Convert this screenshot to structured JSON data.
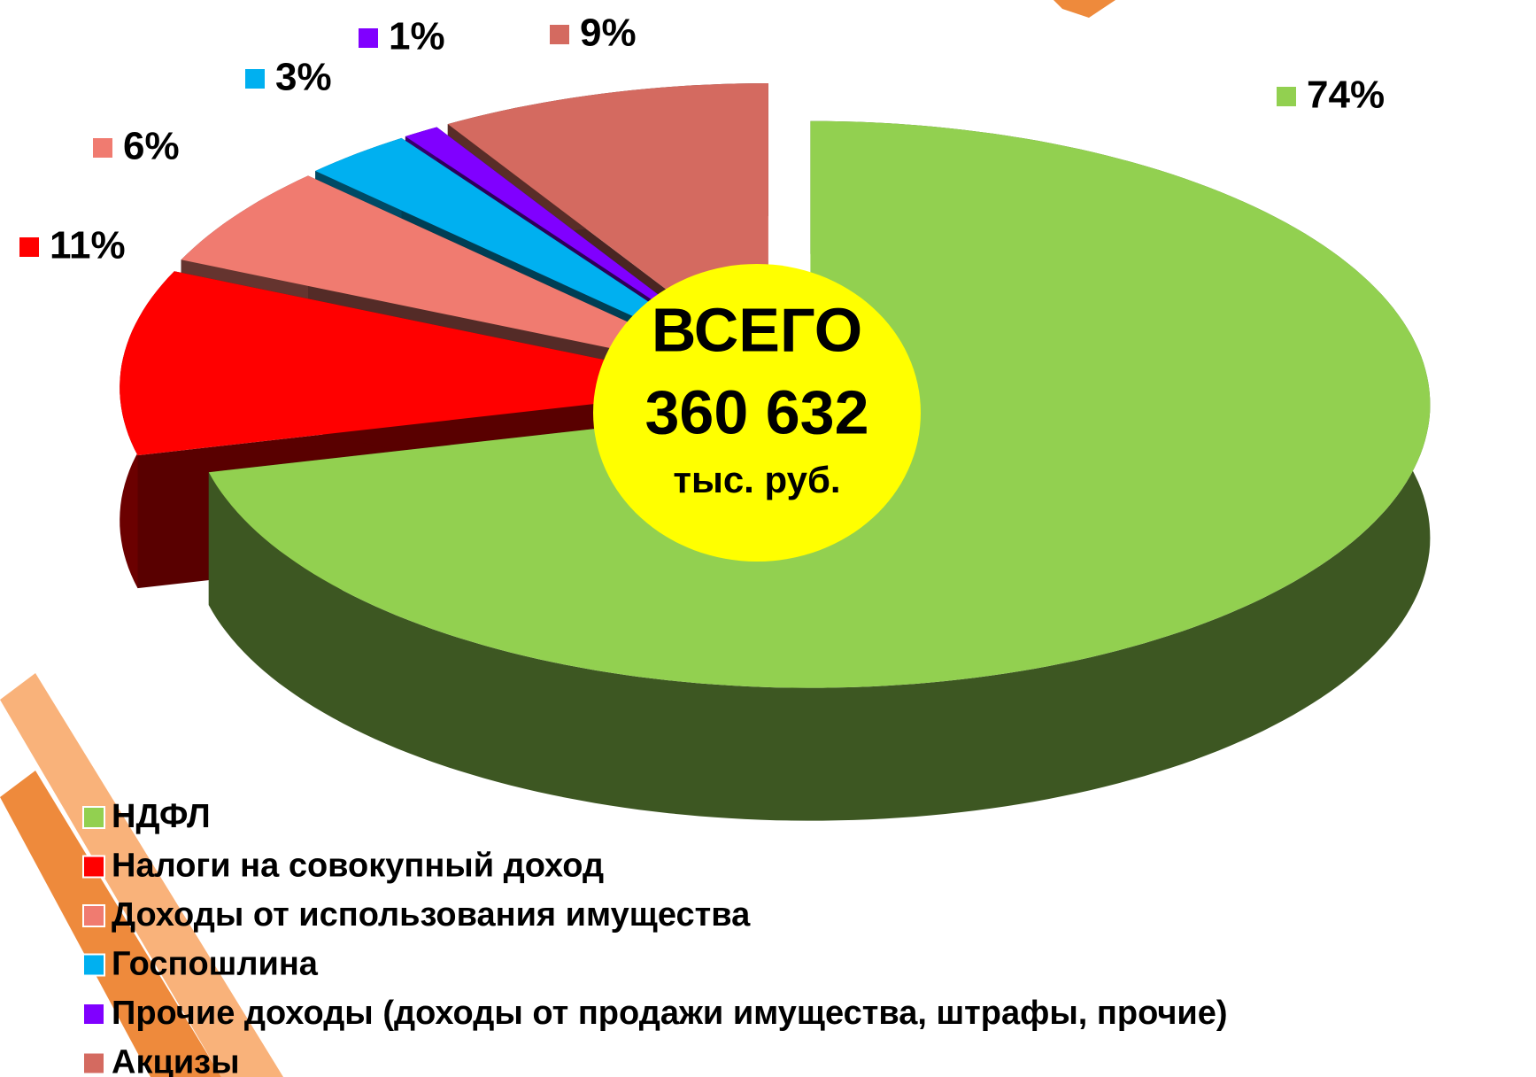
{
  "chart_data": {
    "type": "pie",
    "categories": [
      "НДФЛ",
      "Налоги на совокупный доход",
      "Доходы от использования имущества",
      "Госпошлина",
      "Прочие  доходы (доходы от продажи имущества, штрафы, прочие)",
      "Акцизы"
    ],
    "values": [
      74,
      11,
      6,
      3,
      1,
      9
    ],
    "value_labels": [
      "74%",
      "11%",
      "6%",
      "3%",
      "1%",
      "9%"
    ],
    "colors": [
      "#92d050",
      "#ff0000",
      "#f07b70",
      "#00b0f0",
      "#8000ff",
      "#d46a60"
    ],
    "center_text": [
      "ВСЕГО",
      "360 632",
      "тыс. руб."
    ],
    "legend": "bottom-left"
  }
}
